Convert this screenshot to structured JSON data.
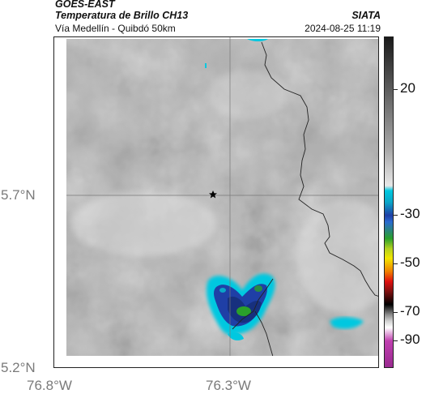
{
  "header": {
    "satellite": "GOES-EAST",
    "product": "Temperatura de Brillo CH13",
    "location": "Vía Medellín - Quibdó 50km",
    "organization": "SIATA",
    "timestamp": "2024-08-25 11:19"
  },
  "map": {
    "lat_labels": [
      "5.7°N",
      "5.2°N"
    ],
    "lon_labels": [
      "76.8°W",
      "76.3°W"
    ],
    "marker": "star-icon",
    "gridlines": true
  },
  "colorbar": {
    "ticks": [
      "20",
      "-30",
      "-50",
      "-70",
      "-90"
    ],
    "colors": {
      "warm_gray_light": "#e6e6e6",
      "warm_gray_dark": "#2a2a2a",
      "cold_cyan": "#00c8e0",
      "cold_blue": "#1f3fa6",
      "cold_green": "#2aa02a",
      "yellow": "#f2e600",
      "red": "#e01010",
      "black": "#000000",
      "magenta": "#c040b0"
    }
  }
}
